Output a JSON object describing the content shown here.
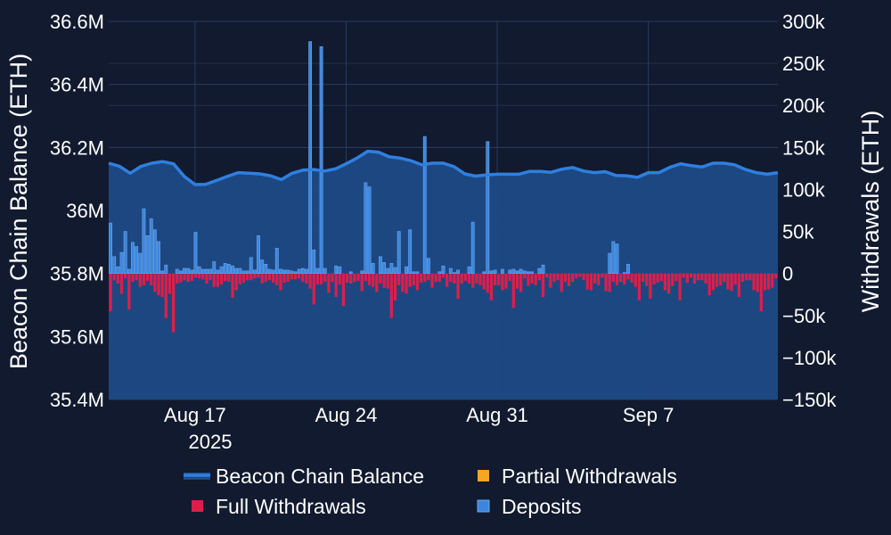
{
  "chart_data": {
    "type": "bar",
    "title": "",
    "ylabel_left": "Beacon Chain Balance (ETH)",
    "ylabel_right": "Withdrawals (ETH)",
    "y_left": {
      "min": 35.4,
      "max": 36.6,
      "unit": "M",
      "ticks": [
        35.4,
        35.6,
        35.8,
        36.0,
        36.2,
        36.4,
        36.6
      ],
      "tick_labels": [
        "35.4M",
        "35.6M",
        "35.8M",
        "36M",
        "36.2M",
        "36.4M",
        "36.6M"
      ]
    },
    "y_right": {
      "min": -150,
      "max": 300,
      "unit": "k",
      "ticks": [
        -150,
        -100,
        -50,
        0,
        50,
        100,
        150,
        200,
        250,
        300
      ],
      "tick_labels": [
        "−150k",
        "−100k",
        "−50k",
        "0",
        "50k",
        "100k",
        "150k",
        "200k",
        "250k",
        "300k"
      ]
    },
    "x_axis": {
      "start": "2025-08-13",
      "end": "2025-09-13",
      "type": "date",
      "ticks": [
        "2025-08-17",
        "2025-08-24",
        "2025-08-31",
        "2025-09-07"
      ],
      "tick_labels": [
        "Aug 17",
        "Aug 24",
        "Aug 31",
        "Sep 7"
      ],
      "year_label": "2025"
    },
    "grid": true,
    "legend_position": "bottom",
    "colors": {
      "balance_line": "#2f7fe0",
      "balance_fill": "#1f4a86",
      "full": "#dc1f4a",
      "partial": "#f5a623",
      "deposits": "#3c86de",
      "deposits_edge": "#6aa9f0",
      "grid": "#2a3b63",
      "text": "#ffffff"
    },
    "series": [
      {
        "name": "Beacon Chain Balance",
        "axis": "left",
        "kind": "line",
        "x": [
          "2025-08-13",
          "2025-08-13T12",
          "2025-08-14",
          "2025-08-14T12",
          "2025-08-15",
          "2025-08-15T12",
          "2025-08-16",
          "2025-08-16T12",
          "2025-08-17",
          "2025-08-17T12",
          "2025-08-18",
          "2025-08-18T12",
          "2025-08-19",
          "2025-08-19T12",
          "2025-08-20",
          "2025-08-20T12",
          "2025-08-21",
          "2025-08-21T12",
          "2025-08-22",
          "2025-08-22T12",
          "2025-08-23",
          "2025-08-23T12",
          "2025-08-24",
          "2025-08-24T12",
          "2025-08-25",
          "2025-08-25T12",
          "2025-08-26",
          "2025-08-26T12",
          "2025-08-27",
          "2025-08-27T12",
          "2025-08-28",
          "2025-08-28T12",
          "2025-08-29",
          "2025-08-29T12",
          "2025-08-30",
          "2025-08-30T12",
          "2025-08-31",
          "2025-08-31T12",
          "2025-09-01",
          "2025-09-01T12",
          "2025-09-02",
          "2025-09-02T12",
          "2025-09-03",
          "2025-09-03T12",
          "2025-09-04",
          "2025-09-04T12",
          "2025-09-05",
          "2025-09-05T12",
          "2025-09-06",
          "2025-09-06T12",
          "2025-09-07",
          "2025-09-07T12",
          "2025-09-08",
          "2025-09-08T12",
          "2025-09-09",
          "2025-09-09T12",
          "2025-09-10",
          "2025-09-10T12",
          "2025-09-11",
          "2025-09-11T12",
          "2025-09-12",
          "2025-09-12T12",
          "2025-09-13"
        ],
        "values": [
          36.15,
          36.14,
          36.118,
          36.14,
          36.15,
          36.155,
          36.148,
          36.108,
          36.082,
          36.083,
          36.095,
          36.108,
          36.12,
          36.118,
          36.116,
          36.11,
          36.098,
          36.118,
          36.128,
          36.13,
          36.125,
          36.132,
          36.148,
          36.166,
          36.188,
          36.185,
          36.17,
          36.166,
          36.158,
          36.145,
          36.15,
          36.15,
          36.139,
          36.116,
          36.109,
          36.113,
          36.115,
          36.115,
          36.115,
          36.124,
          36.124,
          36.121,
          36.131,
          36.136,
          36.125,
          36.12,
          36.123,
          36.111,
          36.11,
          36.105,
          36.12,
          36.12,
          36.137,
          36.148,
          36.142,
          36.138,
          36.15,
          36.15,
          36.145,
          36.13,
          36.12,
          36.115,
          36.12
        ]
      },
      {
        "name": "Full Withdrawals",
        "axis": "right",
        "kind": "bar",
        "unit": "k",
        "values": [
          -45,
          -8,
          -12,
          -24,
          -6,
          -43,
          -10,
          -8,
          -16,
          -14,
          -9,
          -14,
          -22,
          -26,
          -28,
          -53,
          -24,
          -70,
          -12,
          -11,
          -8,
          -10,
          -9,
          -5,
          -6,
          -7,
          -12,
          -8,
          -16,
          -16,
          -13,
          -9,
          -10,
          -29,
          -20,
          -13,
          -11,
          -8,
          -8,
          -6,
          -5,
          -12,
          -10,
          -8,
          -11,
          -14,
          -20,
          -11,
          -10,
          -7,
          -7,
          -6,
          -10,
          -12,
          -18,
          -37,
          -13,
          -13,
          -10,
          -23,
          -10,
          -28,
          -13,
          -39,
          -11,
          -12,
          -10,
          -9,
          -21,
          -9,
          -14,
          -16,
          -22,
          -12,
          -17,
          -18,
          -53,
          -32,
          -14,
          -22,
          -24,
          -16,
          -14,
          -20,
          -11,
          -10,
          -8,
          -17,
          -10,
          -10,
          -5,
          -16,
          -10,
          -12,
          -30,
          -12,
          -9,
          -12,
          -17,
          -12,
          -14,
          -19,
          -23,
          -32,
          -14,
          -14,
          -20,
          -18,
          -9,
          -41,
          -18,
          -22,
          -6,
          -15,
          -12,
          -14,
          -8,
          -28,
          -5,
          -17,
          -10,
          -8,
          -22,
          -10,
          -15,
          -10,
          -6,
          -4,
          -8,
          -19,
          -20,
          -12,
          -14,
          -5,
          -21,
          -22,
          -10,
          -14,
          -10,
          -13,
          -7,
          -11,
          -16,
          -32,
          -10,
          -15,
          -30,
          -13,
          -11,
          -9,
          -20,
          -24,
          -15,
          -9,
          -32,
          -5,
          -11,
          -5,
          -12,
          -8,
          -8,
          -12,
          -26,
          -20,
          -16,
          -14,
          -10,
          -19,
          -21,
          -13,
          -28,
          -10,
          -8,
          -8,
          -20,
          -22,
          -45,
          -20,
          -19,
          -17,
          -6
        ]
      },
      {
        "name": "Partial Withdrawals",
        "axis": "right",
        "kind": "bar",
        "unit": "k",
        "values": []
      },
      {
        "name": "Deposits",
        "axis": "right",
        "kind": "bar",
        "unit": "k",
        "values": [
          60,
          20,
          8,
          25,
          50,
          5,
          37,
          32,
          24,
          77,
          45,
          65,
          52,
          38,
          3,
          10,
          0,
          0,
          5,
          3,
          6,
          6,
          4,
          49,
          8,
          5,
          5,
          5,
          14,
          4,
          8,
          12,
          11,
          9,
          6,
          6,
          3,
          3,
          19,
          4,
          45,
          16,
          11,
          5,
          4,
          30,
          5,
          4,
          4,
          3,
          2,
          5,
          6,
          5,
          276,
          28,
          6,
          270,
          6,
          0,
          0,
          9,
          8,
          0,
          0,
          2,
          0,
          0,
          3,
          108,
          103,
          12,
          0,
          20,
          13,
          6,
          12,
          7,
          50,
          0,
          8,
          52,
          2,
          2,
          0,
          163,
          18,
          0,
          0,
          2,
          9,
          0,
          6,
          1,
          4,
          0,
          0,
          8,
          61,
          0,
          0,
          2,
          157,
          3,
          4,
          0,
          5,
          0,
          4,
          5,
          3,
          5,
          3,
          2,
          2,
          0,
          6,
          10,
          0,
          0,
          0,
          0,
          0,
          0,
          0,
          0,
          0,
          0,
          0,
          0,
          0,
          0,
          0,
          0,
          0,
          24,
          38,
          35,
          0,
          1,
          11,
          0,
          0,
          0,
          0,
          0,
          0,
          0,
          0,
          0,
          0,
          0,
          0,
          0,
          0,
          0,
          0,
          0,
          0,
          0,
          0,
          0,
          0,
          0,
          0,
          0,
          0,
          0,
          0,
          0,
          0,
          0,
          0,
          0,
          0,
          0,
          0,
          0,
          0
        ]
      }
    ]
  },
  "legend": [
    {
      "label": "Beacon Chain Balance",
      "kind": "line",
      "color": "#2f7fe0"
    },
    {
      "label": "Partial Withdrawals",
      "kind": "box",
      "color": "#f5a623"
    },
    {
      "label": "Full Withdrawals",
      "kind": "box",
      "color": "#dc1f4a"
    },
    {
      "label": "Deposits",
      "kind": "box",
      "color": "#3c86de"
    }
  ]
}
